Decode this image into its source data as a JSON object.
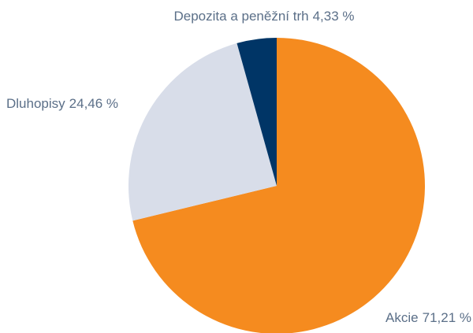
{
  "chart_data": {
    "type": "pie",
    "categories": [
      "Akcie",
      "Dluhopisy",
      "Depozita a peněžní trh"
    ],
    "values": [
      71.21,
      24.46,
      4.33
    ],
    "value_labels": [
      "71,21 %",
      "24,46 %",
      "4,33 %"
    ],
    "colors": [
      "#f58b1f",
      "#d8dde9",
      "#003566"
    ]
  }
}
